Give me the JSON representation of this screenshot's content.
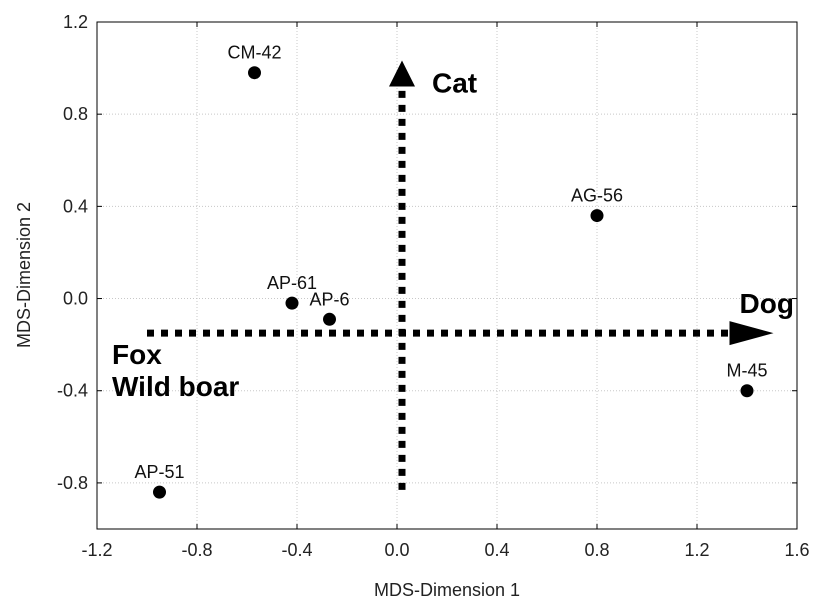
{
  "chart_data": {
    "type": "scatter",
    "xlabel": "MDS-Dimension 1",
    "ylabel": "MDS-Dimension 2",
    "xlim": [
      -1.2,
      1.6
    ],
    "ylim": [
      -1.0,
      1.2
    ],
    "xticks": [
      "-1.2",
      "-0.8",
      "-0.4",
      "0.0",
      "0.4",
      "0.8",
      "1.2",
      "1.6"
    ],
    "yticks": [
      "-0.8",
      "-0.4",
      "0.0",
      "0.4",
      "0.8",
      "1.2"
    ],
    "grid": true,
    "points": [
      {
        "label": "CM-42",
        "x": -0.57,
        "y": 0.98
      },
      {
        "label": "AG-56",
        "x": 0.8,
        "y": 0.36
      },
      {
        "label": "AP-61",
        "x": -0.42,
        "y": -0.02
      },
      {
        "label": "AP-6",
        "x": -0.27,
        "y": -0.09
      },
      {
        "label": "M-45",
        "x": 1.4,
        "y": -0.4
      },
      {
        "label": "AP-51",
        "x": -0.95,
        "y": -0.84
      }
    ],
    "arrows": [
      {
        "label": "Cat",
        "from": [
          0.02,
          -0.83
        ],
        "to": [
          0.02,
          0.92
        ]
      },
      {
        "label": "Dog",
        "from": [
          -1.0,
          -0.15
        ],
        "to": [
          1.33,
          -0.15
        ]
      }
    ],
    "annotations": [
      "Fox",
      "Wild boar"
    ]
  }
}
